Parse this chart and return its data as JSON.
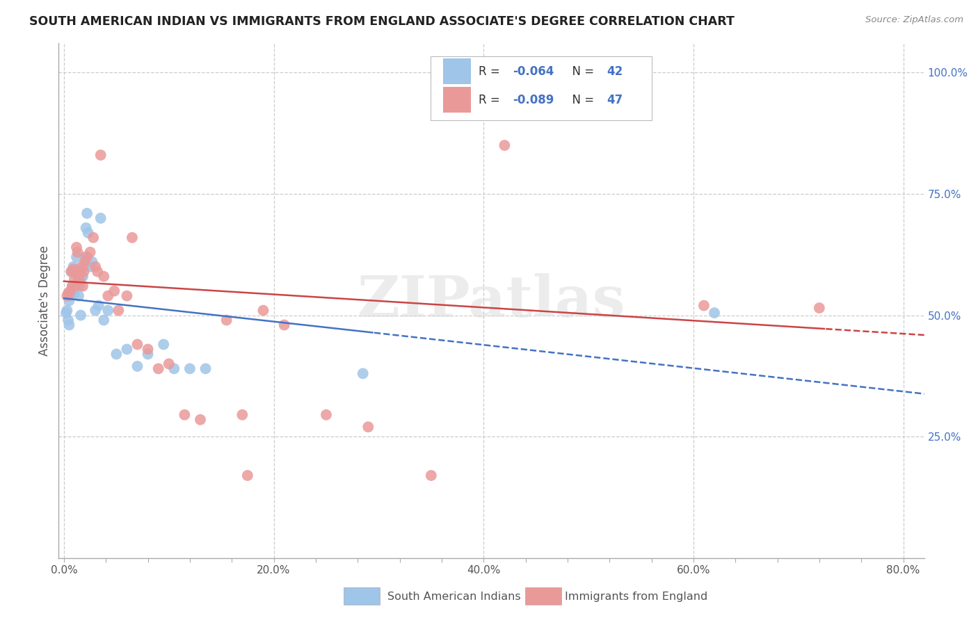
{
  "title": "SOUTH AMERICAN INDIAN VS IMMIGRANTS FROM ENGLAND ASSOCIATE'S DEGREE CORRELATION CHART",
  "source": "Source: ZipAtlas.com",
  "ylabel": "Associate's Degree",
  "xlim": [
    0,
    0.8
  ],
  "ylim": [
    0,
    1.0
  ],
  "xtick_labels": [
    "0.0%",
    "",
    "",
    "",
    "",
    "20.0%",
    "",
    "",
    "",
    "",
    "40.0%",
    "",
    "",
    "",
    "",
    "60.0%",
    "",
    "",
    "",
    "",
    "80.0%"
  ],
  "xtick_vals": [
    0.0,
    0.04,
    0.08,
    0.12,
    0.16,
    0.2,
    0.24,
    0.28,
    0.32,
    0.36,
    0.4,
    0.44,
    0.48,
    0.52,
    0.56,
    0.6,
    0.64,
    0.68,
    0.72,
    0.76,
    0.8
  ],
  "ytick_labels": [
    "25.0%",
    "50.0%",
    "75.0%",
    "100.0%"
  ],
  "ytick_vals": [
    0.25,
    0.5,
    0.75,
    1.0
  ],
  "r_blue": "-0.064",
  "n_blue": "42",
  "r_pink": "-0.089",
  "n_pink": "47",
  "label_blue": "South American Indians",
  "label_pink": "Immigrants from England",
  "blue_dot": "#9fc5e8",
  "pink_dot": "#ea9999",
  "line_blue": "#4472c4",
  "line_pink": "#cc4444",
  "grid_color": "#cccccc",
  "watermark": "ZIPatlas",
  "blue_x": [
    0.002,
    0.003,
    0.004,
    0.005,
    0.005,
    0.006,
    0.007,
    0.007,
    0.008,
    0.009,
    0.01,
    0.01,
    0.011,
    0.012,
    0.013,
    0.014,
    0.015,
    0.016,
    0.017,
    0.018,
    0.019,
    0.02,
    0.021,
    0.022,
    0.023,
    0.025,
    0.027,
    0.03,
    0.033,
    0.035,
    0.038,
    0.042,
    0.05,
    0.06,
    0.07,
    0.08,
    0.095,
    0.105,
    0.12,
    0.135,
    0.285,
    0.62
  ],
  "blue_y": [
    0.505,
    0.51,
    0.49,
    0.48,
    0.53,
    0.54,
    0.545,
    0.59,
    0.56,
    0.6,
    0.59,
    0.545,
    0.56,
    0.62,
    0.58,
    0.54,
    0.56,
    0.5,
    0.58,
    0.58,
    0.6,
    0.62,
    0.68,
    0.71,
    0.67,
    0.6,
    0.61,
    0.51,
    0.52,
    0.7,
    0.49,
    0.51,
    0.42,
    0.43,
    0.395,
    0.42,
    0.44,
    0.39,
    0.39,
    0.39,
    0.38,
    0.505
  ],
  "pink_x": [
    0.003,
    0.004,
    0.005,
    0.006,
    0.007,
    0.008,
    0.009,
    0.01,
    0.011,
    0.012,
    0.013,
    0.014,
    0.015,
    0.016,
    0.017,
    0.018,
    0.019,
    0.02,
    0.022,
    0.025,
    0.028,
    0.03,
    0.032,
    0.035,
    0.038,
    0.042,
    0.048,
    0.052,
    0.06,
    0.065,
    0.07,
    0.08,
    0.09,
    0.1,
    0.115,
    0.13,
    0.155,
    0.17,
    0.175,
    0.19,
    0.21,
    0.25,
    0.29,
    0.35,
    0.42,
    0.61,
    0.72
  ],
  "pink_y": [
    0.54,
    0.545,
    0.545,
    0.55,
    0.59,
    0.56,
    0.595,
    0.575,
    0.56,
    0.64,
    0.63,
    0.58,
    0.57,
    0.59,
    0.6,
    0.56,
    0.59,
    0.61,
    0.62,
    0.63,
    0.66,
    0.6,
    0.59,
    0.83,
    0.58,
    0.54,
    0.55,
    0.51,
    0.54,
    0.66,
    0.44,
    0.43,
    0.39,
    0.4,
    0.295,
    0.285,
    0.49,
    0.295,
    0.17,
    0.51,
    0.48,
    0.295,
    0.27,
    0.17,
    0.85,
    0.52,
    0.515
  ]
}
